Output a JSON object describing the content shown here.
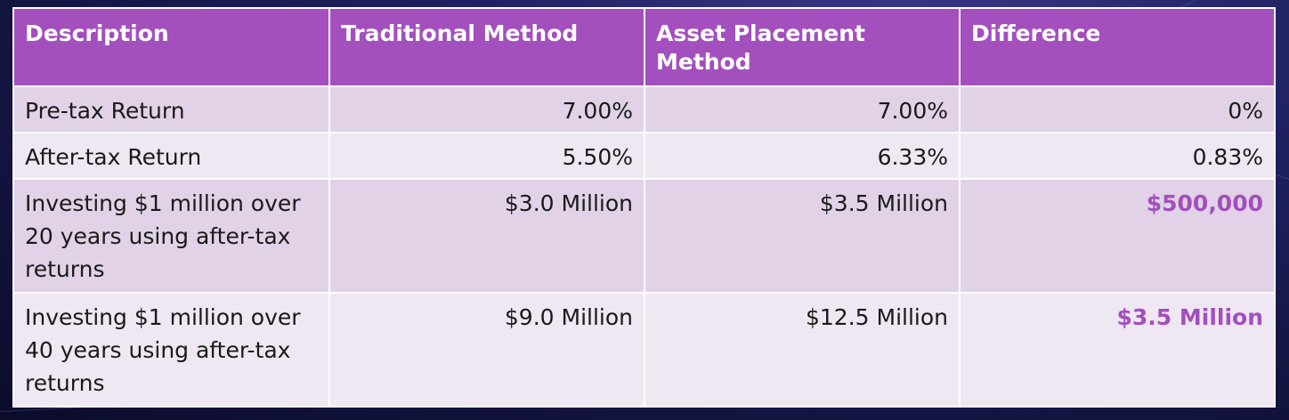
{
  "colors": {
    "header_bg": "#a34fbd",
    "row_odd_bg": "#e1d2e7",
    "row_even_bg": "#efe7f2",
    "highlight_text": "#a34fbd"
  },
  "table": {
    "headers": [
      "Description",
      "Traditional Method",
      "Asset Placement Method",
      "Difference"
    ],
    "rows": [
      {
        "description": "Pre-tax Return",
        "traditional": "7.00%",
        "asset_placement": "7.00%",
        "difference": "0%",
        "difference_highlight": false
      },
      {
        "description": "After-tax Return",
        "traditional": "5.50%",
        "asset_placement": "6.33%",
        "difference": "0.83%",
        "difference_highlight": false
      },
      {
        "description": "Investing $1 million over 20 years using after-tax returns",
        "traditional": "$3.0 Million",
        "asset_placement": "$3.5 Million",
        "difference": "$500,000",
        "difference_highlight": true
      },
      {
        "description": "Investing $1 million over 40 years using after-tax returns",
        "traditional": "$9.0 Million",
        "asset_placement": "$12.5 Million",
        "difference": "$3.5 Million",
        "difference_highlight": true
      }
    ]
  }
}
